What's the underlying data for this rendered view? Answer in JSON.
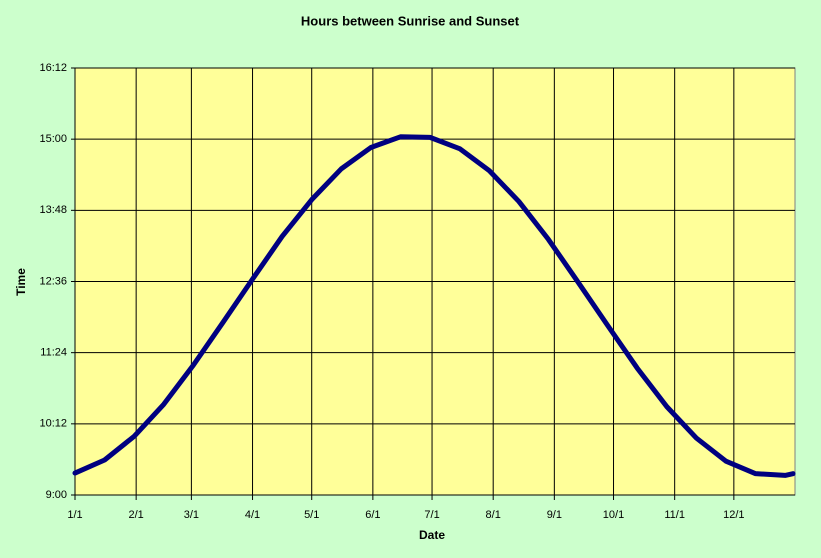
{
  "chart_data": {
    "type": "line",
    "title": "Hours between Sunrise and Sunset",
    "x_label": "Date",
    "y_label": "Time",
    "x": [
      0,
      15,
      30,
      45,
      60,
      75,
      90,
      105,
      120,
      135,
      150,
      165,
      180,
      195,
      210,
      225,
      240,
      255,
      270,
      285,
      300,
      315,
      330,
      345,
      360,
      364
    ],
    "values": [
      9.37,
      9.59,
      9.99,
      10.53,
      11.19,
      11.91,
      12.64,
      13.36,
      13.98,
      14.5,
      14.86,
      15.04,
      15.03,
      14.84,
      14.47,
      13.95,
      13.31,
      12.59,
      11.86,
      11.14,
      10.49,
      9.96,
      9.57,
      9.36,
      9.33,
      9.36
    ],
    "color": "#000080",
    "xlim": [
      0,
      365
    ],
    "xticks": [
      {
        "value": 0,
        "label": "1/1"
      },
      {
        "value": 31,
        "label": "2/1"
      },
      {
        "value": 59,
        "label": "3/1"
      },
      {
        "value": 90,
        "label": "4/1"
      },
      {
        "value": 120,
        "label": "5/1"
      },
      {
        "value": 151,
        "label": "6/1"
      },
      {
        "value": 181,
        "label": "7/1"
      },
      {
        "value": 212,
        "label": "8/1"
      },
      {
        "value": 243,
        "label": "9/1"
      },
      {
        "value": 273,
        "label": "10/1"
      },
      {
        "value": 304,
        "label": "11/1"
      },
      {
        "value": 334,
        "label": "12/1"
      }
    ],
    "ylim": [
      9,
      16.2
    ],
    "yticks": [
      {
        "value": 9,
        "label": "9:00"
      },
      {
        "value": 10.2,
        "label": "10:12"
      },
      {
        "value": 11.4,
        "label": "11:24"
      },
      {
        "value": 12.6,
        "label": "12:36"
      },
      {
        "value": 13.8,
        "label": "13:48"
      },
      {
        "value": 15,
        "label": "15:00"
      },
      {
        "value": 16.2,
        "label": "16:12"
      }
    ],
    "grid": true
  }
}
